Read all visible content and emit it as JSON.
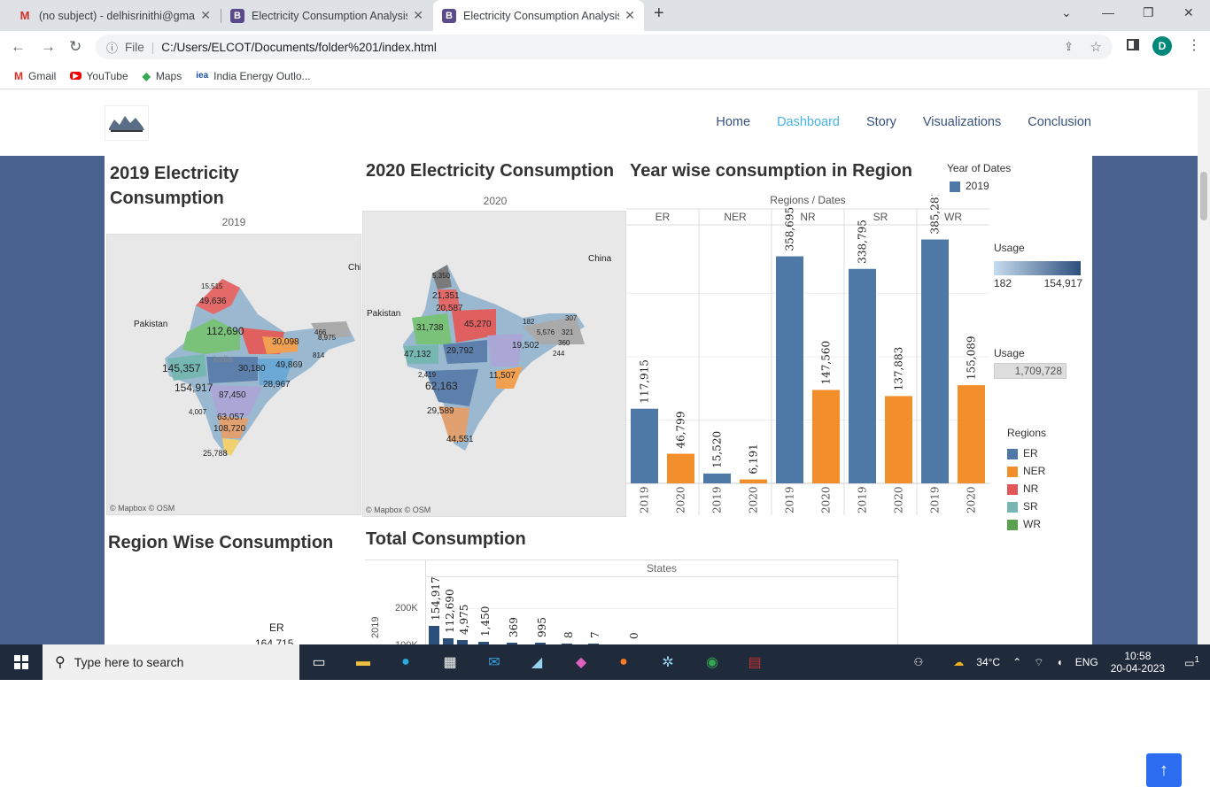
{
  "tabs": [
    {
      "title": "(no subject) - delhisrinithi@gmai",
      "icon": "gmail-icon"
    },
    {
      "title": "Electricity Consumption Analysis",
      "icon": "b-icon"
    },
    {
      "title": "Electricity Consumption Analysis",
      "icon": "b-icon"
    }
  ],
  "toolbar": {
    "file_label": "File",
    "url": "C:/Users/ELCOT/Documents/folder%201/index.html",
    "profile_initial": "D"
  },
  "bookmarks": [
    {
      "label": "Gmail"
    },
    {
      "label": "YouTube"
    },
    {
      "label": "Maps"
    },
    {
      "label": "India Energy Outlo..."
    }
  ],
  "nav": {
    "items": [
      "Home",
      "Dashboard",
      "Story",
      "Visualizations",
      "Conclusion"
    ],
    "active": "Dashboard"
  },
  "titles": {
    "map2019": "2019  Electricity Consumption",
    "map2020": "2020  Electricity Consumption",
    "yearwise": "Year wise consumption in Region",
    "regionwise": "Region Wise Consumption",
    "total": "Total Consumption"
  },
  "map2019": {
    "header": "2019",
    "credit": "© Mapbox  © OSM",
    "labels": [
      "15,515",
      "49,636",
      "112,690",
      "30,098",
      "466",
      "8,975",
      "145,357",
      "30,180",
      "49,869",
      "814",
      "154,917",
      "28,967",
      "87,450",
      "4,007",
      "63,057",
      "108,720",
      "25,788"
    ],
    "country_labels": [
      "Pakistan",
      "Chi",
      "India"
    ]
  },
  "map2020": {
    "header": "2020",
    "credit": "© Mapbox  © OSM",
    "labels": [
      "5,350",
      "21,351",
      "20,587",
      "31,738",
      "45,270",
      "182",
      "5,576",
      "321",
      "307",
      "19,502",
      "360",
      "47,132",
      "29,792",
      "244",
      "2,419",
      "62,163",
      "11,507",
      "29,589",
      "44,551"
    ],
    "country_labels": [
      "Pakistan",
      "China"
    ]
  },
  "chart_data": {
    "type": "bar",
    "title": "Year wise consumption in Region",
    "header": "Regions / Dates",
    "regions": [
      "ER",
      "NER",
      "NR",
      "SR",
      "WR"
    ],
    "years": [
      "2019",
      "2020"
    ],
    "series": [
      {
        "name": "2019",
        "values": [
          117915,
          15520,
          358695,
          338795,
          385281
        ]
      },
      {
        "name": "2020",
        "values": [
          46799,
          6191,
          147560,
          137883,
          155089
        ]
      }
    ],
    "value_labels_2019": [
      "117,915",
      "15,520",
      "358,695",
      "338,795",
      "385,281"
    ],
    "value_labels_2020": [
      "46,799",
      "6,191",
      "147,560",
      "137,883",
      "155,089"
    ],
    "ylim": [
      0,
      400000
    ]
  },
  "legend": {
    "year_title": "Year of Dates",
    "year_item": "2019",
    "usage_title": "Usage",
    "usage_min": "182",
    "usage_max": "154,917",
    "usage2_title": "Usage",
    "usage2_value": "1,709,728",
    "regions_title": "Regions",
    "regions": [
      {
        "name": "ER",
        "color": "#4e79a7"
      },
      {
        "name": "NER",
        "color": "#f28e2b"
      },
      {
        "name": "NR",
        "color": "#e15759"
      },
      {
        "name": "SR",
        "color": "#76b7b2"
      },
      {
        "name": "WR",
        "color": "#59a14f"
      }
    ]
  },
  "colors": {
    "bar2019": "#4e79a7",
    "bar2020": "#f28e2b",
    "nav_active": "#47b2e4",
    "main_bg": "#4a6290"
  },
  "total": {
    "header": "States",
    "ytick": "200K",
    "ytick2": "100K",
    "row_label": "2019",
    "bar_labels": [
      "154,917",
      "112,690",
      "4,975",
      "1,450",
      "369",
      "995",
      "8",
      "7",
      "0"
    ]
  },
  "regionwise": {
    "label": "ER",
    "value": "164,715"
  },
  "taskbar": {
    "search_placeholder": "Type here to search",
    "temp": "34°C",
    "lang": "ENG",
    "time": "10:58",
    "date": "20-04-2023",
    "notif": "1"
  }
}
